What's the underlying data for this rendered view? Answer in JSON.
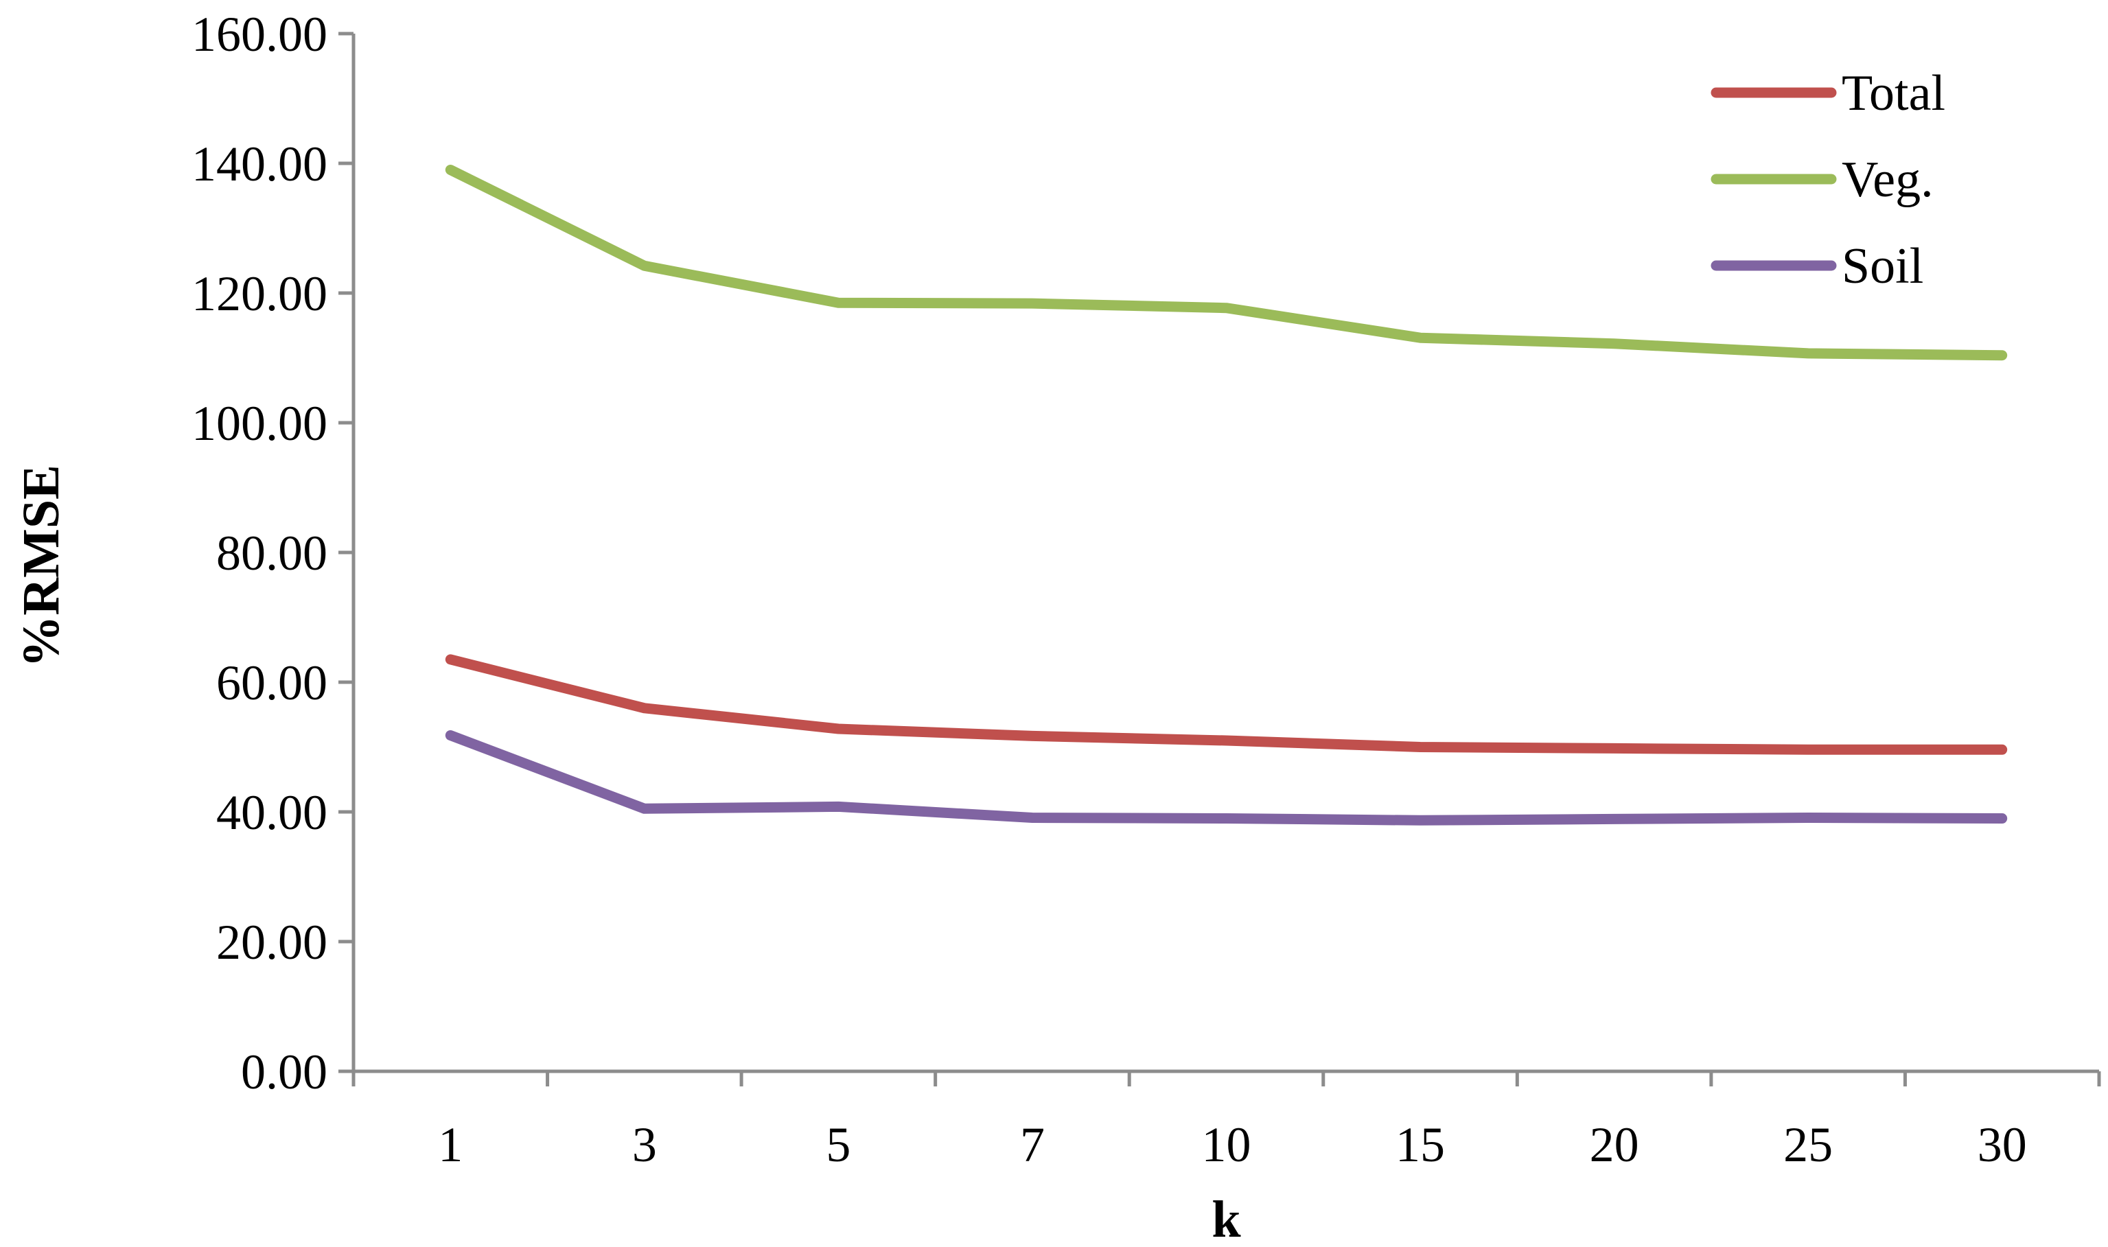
{
  "chart_data": {
    "type": "line",
    "title": "",
    "xlabel": "k",
    "ylabel": "%RMSE",
    "categories": [
      "1",
      "3",
      "5",
      "7",
      "10",
      "15",
      "20",
      "25",
      "30"
    ],
    "ylim": [
      0,
      160
    ],
    "yticks": [
      "0.00",
      "20.00",
      "40.00",
      "60.00",
      "80.00",
      "100.00",
      "120.00",
      "140.00",
      "160.00"
    ],
    "grid": false,
    "legend_position": "top-right",
    "series": [
      {
        "name": "Total",
        "color": "#c0504d",
        "values": [
          63.5,
          56.0,
          52.8,
          51.7,
          51.0,
          50.0,
          49.8,
          49.6,
          49.6
        ]
      },
      {
        "name": "Veg.",
        "color": "#9bbb59",
        "values": [
          139.0,
          124.2,
          118.5,
          118.4,
          117.7,
          113.1,
          112.2,
          110.7,
          110.4
        ]
      },
      {
        "name": "Soil",
        "color": "#8064a2",
        "values": [
          51.8,
          40.5,
          40.8,
          39.1,
          39.0,
          38.7,
          38.9,
          39.1,
          39.0
        ]
      }
    ]
  }
}
